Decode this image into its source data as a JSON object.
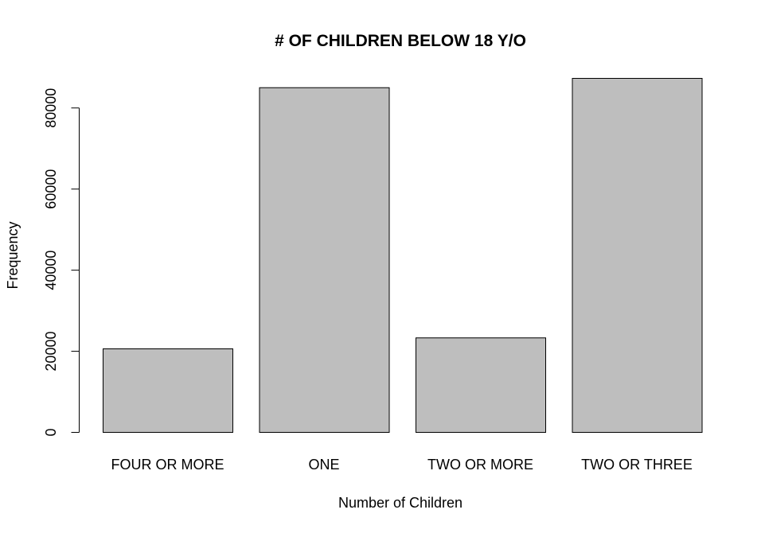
{
  "chart_data": {
    "type": "bar",
    "title": "# OF CHILDREN BELOW 18 Y/O",
    "xlabel": "Number of Children",
    "ylabel": "Frequency",
    "categories": [
      "FOUR OR MORE",
      "ONE",
      "TWO OR MORE",
      "TWO OR THREE"
    ],
    "values": [
      20600,
      85000,
      23300,
      87300
    ],
    "ylim": [
      0,
      87300
    ],
    "yticks": [
      0,
      20000,
      40000,
      60000,
      80000
    ],
    "ytick_labels": [
      "0",
      "20000",
      "40000",
      "60000",
      "80000"
    ],
    "grid": false,
    "legend": "none",
    "bar_color": "#bebebe"
  }
}
